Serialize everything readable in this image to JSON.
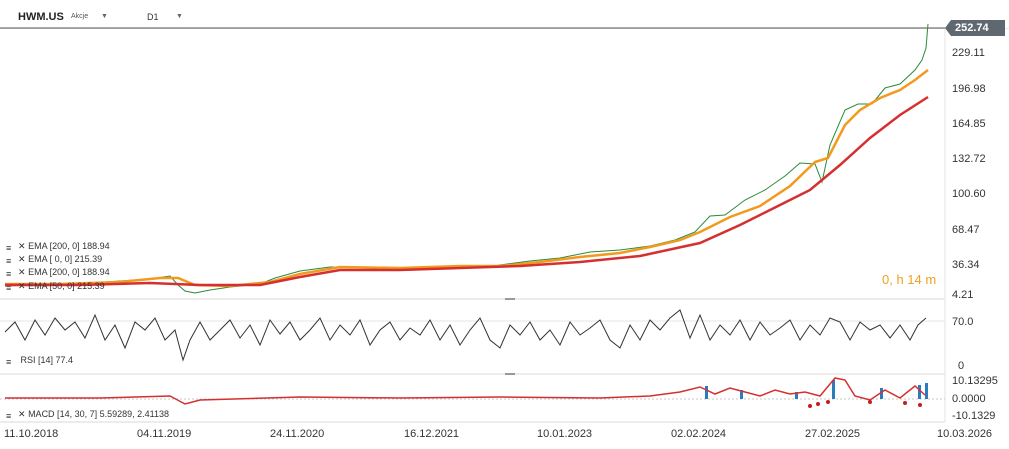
{
  "header": {
    "symbol": "HWM.US",
    "asset_type": "Akcje",
    "timeframe": "D1"
  },
  "price": {
    "last": "252.74",
    "axis": [
      "229.11",
      "196.98",
      "164.85",
      "132.72",
      "100.60",
      "68.47",
      "36.34",
      "4.21"
    ],
    "overlay_text": "0, h 14 m"
  },
  "indicators": [
    {
      "name": "EMA [200, 0]",
      "value": "188.94"
    },
    {
      "name": "EMA [ 0, 0]",
      "value": "215.39"
    },
    {
      "name": "EMA [200, 0]",
      "value": "188.94"
    },
    {
      "name": "EMA [50, 0]",
      "value": "215.39"
    }
  ],
  "rsi": {
    "label": "RSI [14]",
    "value": "77.4",
    "axis": [
      "70.0",
      "0"
    ]
  },
  "macd": {
    "label": "MACD [14, 30, 7]",
    "value1": "5.59289",
    "value2": "2.41138",
    "axis": [
      "10.13295",
      "0.0000",
      "-10.1329"
    ]
  },
  "x_axis": [
    "11.10.2018",
    "04.11.2019",
    "24.11.2020",
    "16.12.2021",
    "10.01.2023",
    "02.02.2024",
    "27.02.2025",
    "10.03.2026"
  ],
  "colors": {
    "ema200": "#d62f2f",
    "ema50": "#f39a1e",
    "price": "#2a8a3a",
    "macd_line": "#d62f2f",
    "macd_hist": "#2a7bc0",
    "rsi": "#333333"
  }
}
